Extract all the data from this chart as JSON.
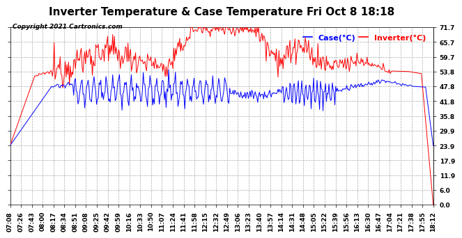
{
  "title": "Inverter Temperature & Case Temperature Fri Oct 8 18:18",
  "copyright": "Copyright 2021 Cartronics.com",
  "legend_labels": [
    "Case(°C)",
    "Inverter(°C)"
  ],
  "legend_colors": [
    "blue",
    "red"
  ],
  "yticks": [
    0.0,
    6.0,
    11.9,
    17.9,
    23.9,
    29.9,
    35.8,
    41.8,
    47.8,
    53.8,
    59.7,
    65.7,
    71.7
  ],
  "ymin": 0.0,
  "ymax": 71.7,
  "background_color": "#ffffff",
  "plot_bg_color": "#ffffff",
  "grid_color": "#aaaaaa",
  "title_fontsize": 11,
  "tick_fontsize": 6.5,
  "legend_fontsize": 8,
  "copyright_fontsize": 6.5,
  "xtick_labels": [
    "07:08",
    "07:26",
    "07:43",
    "08:00",
    "08:17",
    "08:34",
    "08:51",
    "09:08",
    "09:25",
    "09:42",
    "09:59",
    "10:16",
    "10:33",
    "10:50",
    "11:07",
    "11:24",
    "11:41",
    "11:58",
    "12:15",
    "12:32",
    "12:49",
    "13:06",
    "13:23",
    "13:40",
    "13:57",
    "14:14",
    "14:31",
    "14:48",
    "15:05",
    "15:22",
    "15:39",
    "15:56",
    "16:13",
    "16:30",
    "16:47",
    "17:04",
    "17:21",
    "17:38",
    "17:55",
    "18:12"
  ]
}
